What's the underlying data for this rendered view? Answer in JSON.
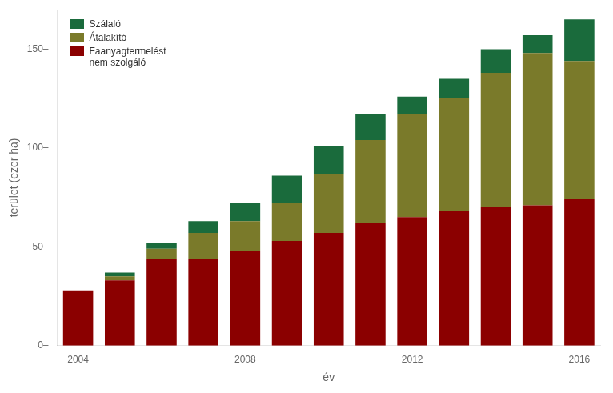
{
  "chart_data": {
    "type": "bar",
    "stacked": true,
    "xlabel": "év",
    "ylabel": "terület (ezer ha)",
    "categories": [
      "2004",
      null,
      null,
      null,
      "2008",
      null,
      null,
      null,
      "2012",
      null,
      null,
      null,
      "2016"
    ],
    "series": [
      {
        "name": "Faanyagtermelést\nnem szolgáló",
        "color": "#8B0000",
        "values": [
          28,
          33,
          44,
          44,
          48,
          53,
          57,
          62,
          65,
          68,
          70,
          71,
          74
        ]
      },
      {
        "name": "Átalakító",
        "color": "#7a7a2a",
        "values": [
          0,
          2,
          5,
          13,
          15,
          19,
          30,
          42,
          52,
          57,
          68,
          77,
          70
        ]
      },
      {
        "name": "Szálaló",
        "color": "#1a6b3c",
        "values": [
          0,
          2,
          3,
          6,
          9,
          14,
          14,
          13,
          9,
          10,
          12,
          9,
          21
        ]
      }
    ],
    "ylim": [
      0,
      170
    ],
    "yticks": [
      {
        "value": 0,
        "label": "0–"
      },
      {
        "value": 50,
        "label": "50–"
      },
      {
        "value": 100,
        "label": "100–"
      },
      {
        "value": 150,
        "label": "150–"
      }
    ],
    "grid": false,
    "legend": "upper left"
  }
}
